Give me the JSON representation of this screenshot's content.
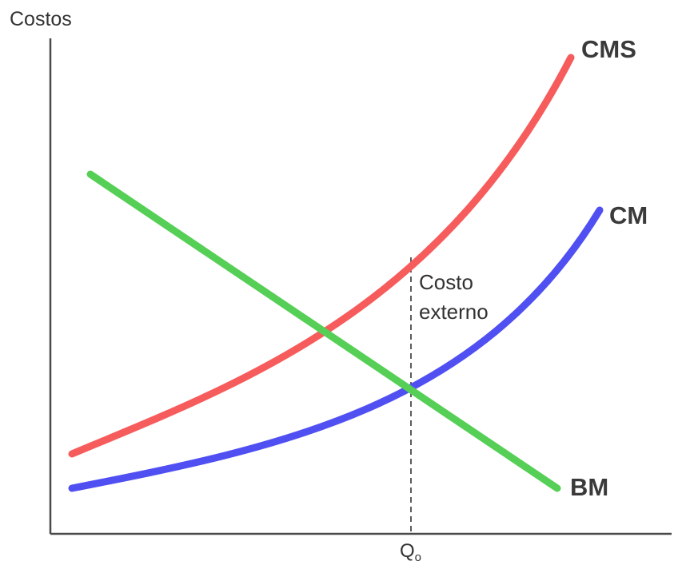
{
  "y_axis_label": "Costos",
  "x_marker_label": "Q",
  "x_marker_subscript": "o",
  "annotation": {
    "line1": "Costo",
    "line2": "externo"
  },
  "curves": {
    "cms": {
      "label": "CMS",
      "color": "#f75c5c"
    },
    "cm": {
      "label": "CM",
      "color": "#5050f2"
    },
    "bm": {
      "label": "BM",
      "color": "#55cf55"
    }
  },
  "axis_color": "#4a4a4a"
}
